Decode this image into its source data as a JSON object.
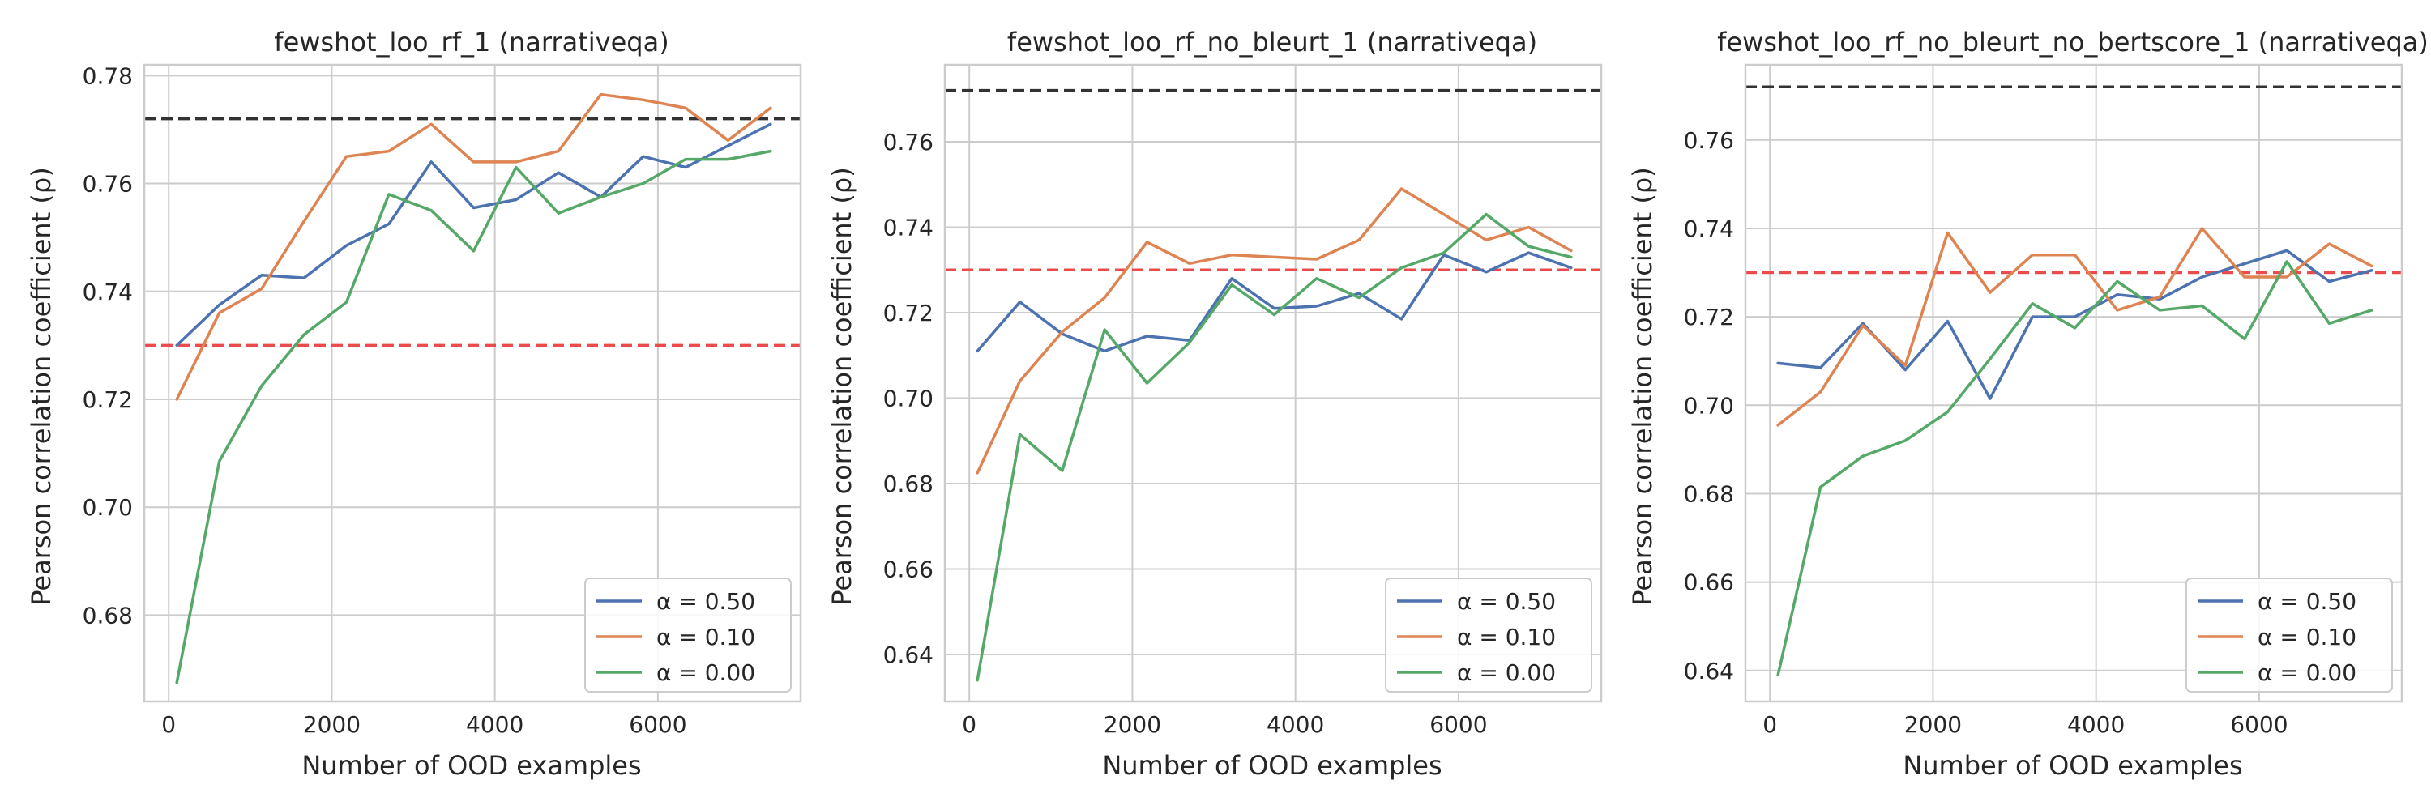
{
  "colors": {
    "alpha_050": "#4c72b0",
    "alpha_010": "#dd8452",
    "alpha_000": "#55a868",
    "ref_black": "#333333",
    "ref_red": "#ec4b4b",
    "grid": "#cccccc",
    "axes_edge": "#cccccc",
    "text": "#262626"
  },
  "chart_data": [
    {
      "type": "line",
      "title": "fewshot_loo_rf_1 (narrativeqa)",
      "xlabel": "Number of OOD examples",
      "ylabel": "Pearson correlation coefficient (ρ)",
      "xlim": [
        -300,
        7750
      ],
      "ylim": [
        0.664,
        0.782
      ],
      "xticks": [
        0,
        2000,
        4000,
        6000
      ],
      "xtick_labels": [
        "0",
        "2000",
        "4000",
        "6000"
      ],
      "yticks": [
        0.68,
        0.7,
        0.72,
        0.74,
        0.76,
        0.78
      ],
      "ytick_labels": [
        "0.68",
        "0.70",
        "0.72",
        "0.74",
        "0.76",
        "0.78"
      ],
      "grid": true,
      "legend_position": "lower-right",
      "x": [
        100,
        620,
        1140,
        1660,
        2180,
        2700,
        3220,
        3740,
        4260,
        4780,
        5300,
        5820,
        6340,
        6860,
        7380
      ],
      "series": [
        {
          "name": "α = 0.50",
          "color_key": "alpha_050",
          "values": [
            0.73,
            0.7375,
            0.743,
            0.7425,
            0.7485,
            0.7525,
            0.764,
            0.7555,
            0.757,
            0.762,
            0.7575,
            0.765,
            0.763,
            0.767,
            0.771
          ]
        },
        {
          "name": "α = 0.10",
          "color_key": "alpha_010",
          "values": [
            0.72,
            0.736,
            0.7405,
            0.753,
            0.765,
            0.766,
            0.771,
            0.764,
            0.764,
            0.766,
            0.7765,
            0.7755,
            0.774,
            0.768,
            0.774
          ]
        },
        {
          "name": "α = 0.00",
          "color_key": "alpha_000",
          "values": [
            0.6675,
            0.7085,
            0.7225,
            0.732,
            0.738,
            0.758,
            0.755,
            0.7475,
            0.763,
            0.7545,
            0.7575,
            0.76,
            0.7645,
            0.7645,
            0.766
          ]
        }
      ],
      "reference_lines": [
        {
          "y": 0.772,
          "color_key": "ref_black"
        },
        {
          "y": 0.73,
          "color_key": "ref_red"
        }
      ]
    },
    {
      "type": "line",
      "title": "fewshot_loo_rf_no_bleurt_1 (narrativeqa)",
      "xlabel": "Number of OOD examples",
      "ylabel": "Pearson correlation coefficient (ρ)",
      "xlim": [
        -300,
        7750
      ],
      "ylim": [
        0.629,
        0.778
      ],
      "xticks": [
        0,
        2000,
        4000,
        6000
      ],
      "xtick_labels": [
        "0",
        "2000",
        "4000",
        "6000"
      ],
      "yticks": [
        0.64,
        0.66,
        0.68,
        0.7,
        0.72,
        0.74,
        0.76
      ],
      "ytick_labels": [
        "0.64",
        "0.66",
        "0.68",
        "0.70",
        "0.72",
        "0.74",
        "0.76"
      ],
      "grid": true,
      "legend_position": "lower-right",
      "x": [
        100,
        620,
        1140,
        1660,
        2180,
        2700,
        3220,
        3740,
        4260,
        4780,
        5300,
        5820,
        6340,
        6860,
        7380
      ],
      "series": [
        {
          "name": "α = 0.50",
          "color_key": "alpha_050",
          "values": [
            0.711,
            0.7225,
            0.715,
            0.711,
            0.7145,
            0.7135,
            0.728,
            0.721,
            0.7215,
            0.7245,
            0.7185,
            0.7335,
            0.7295,
            0.734,
            0.7305
          ]
        },
        {
          "name": "α = 0.10",
          "color_key": "alpha_010",
          "values": [
            0.6825,
            0.704,
            0.7155,
            0.7235,
            0.7365,
            0.7315,
            0.7335,
            0.733,
            0.7325,
            0.737,
            0.749,
            0.743,
            0.737,
            0.74,
            0.7345
          ]
        },
        {
          "name": "α = 0.00",
          "color_key": "alpha_000",
          "values": [
            0.634,
            0.6915,
            0.683,
            0.716,
            0.7035,
            0.713,
            0.7265,
            0.7195,
            0.728,
            0.7235,
            0.7305,
            0.734,
            0.743,
            0.7355,
            0.733
          ]
        }
      ],
      "reference_lines": [
        {
          "y": 0.772,
          "color_key": "ref_black"
        },
        {
          "y": 0.73,
          "color_key": "ref_red"
        }
      ]
    },
    {
      "type": "line",
      "title": "fewshot_loo_rf_no_bleurt_no_bertscore_1 (narrativeqa)",
      "xlabel": "Number of OOD examples",
      "ylabel": "Pearson correlation coefficient (ρ)",
      "xlim": [
        -300,
        7750
      ],
      "ylim": [
        0.633,
        0.777
      ],
      "xticks": [
        0,
        2000,
        4000,
        6000
      ],
      "xtick_labels": [
        "0",
        "2000",
        "4000",
        "6000"
      ],
      "yticks": [
        0.64,
        0.66,
        0.68,
        0.7,
        0.72,
        0.74,
        0.76
      ],
      "ytick_labels": [
        "0.64",
        "0.66",
        "0.68",
        "0.70",
        "0.72",
        "0.74",
        "0.76"
      ],
      "grid": true,
      "legend_position": "lower-right",
      "x": [
        100,
        620,
        1140,
        1660,
        2180,
        2700,
        3220,
        3740,
        4260,
        4780,
        5300,
        5820,
        6340,
        6860,
        7380
      ],
      "series": [
        {
          "name": "α = 0.50",
          "color_key": "alpha_050",
          "values": [
            0.7095,
            0.7085,
            0.7185,
            0.708,
            0.719,
            0.7015,
            0.72,
            0.72,
            0.725,
            0.724,
            0.729,
            0.732,
            0.735,
            0.728,
            0.7305
          ]
        },
        {
          "name": "α = 0.10",
          "color_key": "alpha_010",
          "values": [
            0.6955,
            0.703,
            0.718,
            0.709,
            0.739,
            0.7255,
            0.734,
            0.734,
            0.7215,
            0.7245,
            0.74,
            0.729,
            0.729,
            0.7365,
            0.7315
          ]
        },
        {
          "name": "α = 0.00",
          "color_key": "alpha_000",
          "values": [
            0.639,
            0.6815,
            0.6885,
            0.692,
            0.6985,
            0.7105,
            0.723,
            0.7175,
            0.728,
            0.7215,
            0.7225,
            0.715,
            0.7325,
            0.7185,
            0.7215
          ]
        }
      ],
      "reference_lines": [
        {
          "y": 0.772,
          "color_key": "ref_black"
        },
        {
          "y": 0.73,
          "color_key": "ref_red"
        }
      ]
    }
  ]
}
